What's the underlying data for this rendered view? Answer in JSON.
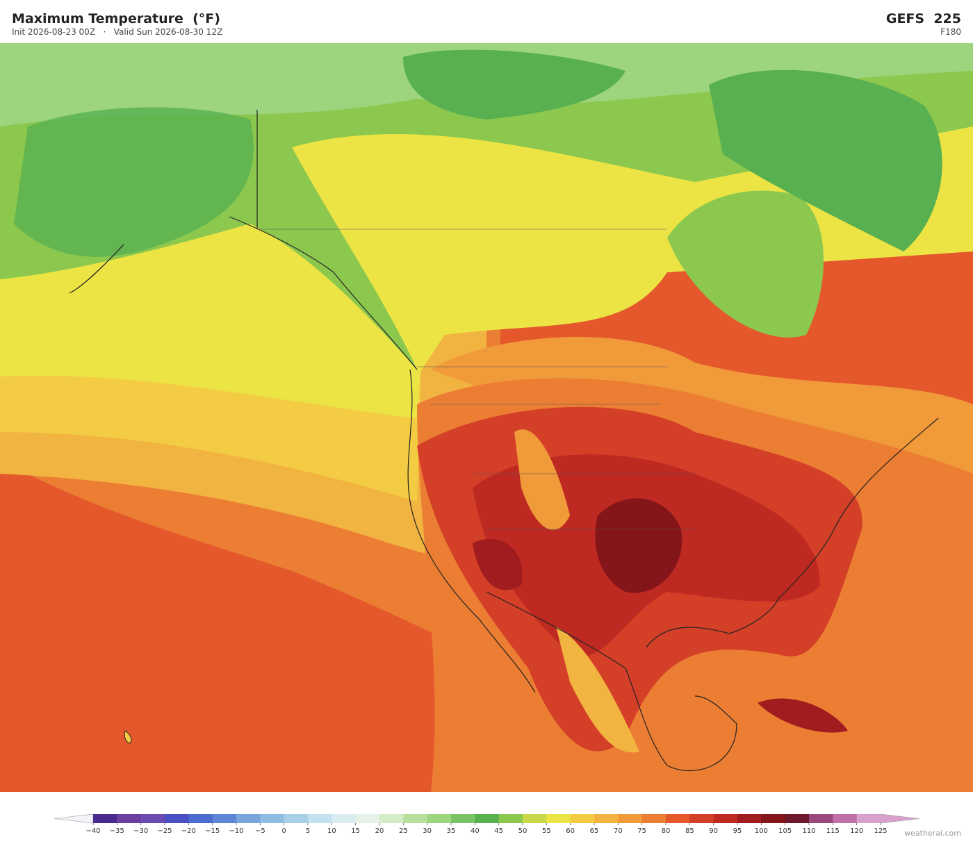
{
  "header": {
    "title": "Maximum Temperature  (°F)",
    "init": "Init 2026-08-23 00Z",
    "separator": "·",
    "valid": "Valid Sun 2026-08-30 12Z",
    "model": "GEFS  225",
    "forecast_hour": "F180"
  },
  "colorbar": {
    "ticks": [
      {
        "value": -40,
        "label": "−40"
      },
      {
        "value": -35,
        "label": "−35"
      },
      {
        "value": -30,
        "label": "−30"
      },
      {
        "value": -25,
        "label": "−25"
      },
      {
        "value": -20,
        "label": "−20"
      },
      {
        "value": -15,
        "label": "−15"
      },
      {
        "value": -10,
        "label": "−10"
      },
      {
        "value": -5,
        "label": "−5"
      },
      0,
      5,
      10,
      15,
      20,
      25,
      30,
      35,
      40,
      45,
      50,
      55,
      60,
      65,
      70,
      75,
      80,
      85,
      90,
      95,
      100,
      105,
      110,
      115,
      120,
      125
    ],
    "colors": [
      "#4b2a8f",
      "#6a3fa0",
      "#6b4cb0",
      "#4b4fc4",
      "#4d6cd0",
      "#5f86d6",
      "#7aa4dc",
      "#8fbce3",
      "#a8cfe8",
      "#c2e0ee",
      "#d8ecf2",
      "#e4f2e8",
      "#d5ecc9",
      "#b8e09c",
      "#9dd47e",
      "#7ac466",
      "#58b050",
      "#8cc84e",
      "#c8d848",
      "#ece444",
      "#f4cc44",
      "#f2b440",
      "#f09a3a",
      "#ec7e34",
      "#e4582c",
      "#d43f28",
      "#be2a22",
      "#a01c1e",
      "#84161a",
      "#6e1a2a",
      "#9a4a7a",
      "#c070a8",
      "#d8a0cc"
    ],
    "under_color": "#f6f2fa",
    "over_color": "#d8a0cc"
  },
  "watermark": "weatherai.com"
}
